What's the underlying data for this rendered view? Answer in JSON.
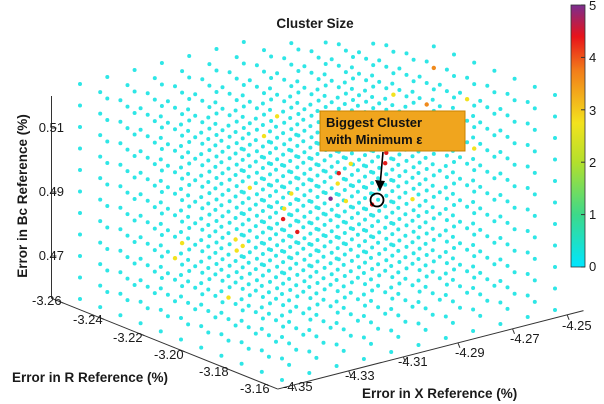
{
  "chart_data": {
    "type": "scatter3d",
    "title": "Cluster Size",
    "xlabel": "Error in X Reference (%)",
    "ylabel": "Error in R Reference (%)",
    "zlabel": "Error in Bc Reference (%)",
    "x_ticks": [
      "-4.35",
      "-4.33",
      "-4.31",
      "-4.29",
      "-4.27",
      "-4.25"
    ],
    "y_ticks": [
      "-3.26",
      "-3.24",
      "-3.22",
      "-3.20",
      "-3.18",
      "-3.16"
    ],
    "z_ticks": [
      "0.51",
      "0.49",
      "0.47"
    ],
    "xlim": [
      -4.35,
      -4.25
    ],
    "ylim": [
      -3.26,
      -3.16
    ],
    "zlim": [
      0.46,
      0.52
    ],
    "grid": "11 x 11 x 11 lattice of samples",
    "colorbar": {
      "min": 0,
      "max": 5,
      "ticks": [
        "5",
        "4",
        "3",
        "2",
        "1",
        "0"
      ],
      "colormap": "parula"
    },
    "default_value": 0,
    "nonzero_points": [
      {
        "ix": 4,
        "iy": 3,
        "iz": 6,
        "value": 5
      },
      {
        "ix": 5,
        "iy": 6,
        "iz": 3,
        "value": 4
      },
      {
        "ix": 7,
        "iy": 5,
        "iz": 4,
        "value": 4
      },
      {
        "ix": 8,
        "iy": 6,
        "iz": 6,
        "value": 4
      },
      {
        "ix": 9,
        "iy": 7,
        "iz": 5,
        "value": 4
      },
      {
        "ix": 3,
        "iy": 4,
        "iz": 5,
        "value": 4
      },
      {
        "ix": 6,
        "iy": 3,
        "iz": 7,
        "value": 4
      },
      {
        "ix": 8,
        "iy": 8,
        "iz": 4,
        "value": 4
      },
      {
        "ix": 9,
        "iy": 5,
        "iz": 8,
        "value": 3
      },
      {
        "ix": 7,
        "iy": 7,
        "iz": 7,
        "value": 3
      },
      {
        "ix": 10,
        "iy": 6,
        "iz": 9,
        "value": 3
      },
      {
        "ix": 2,
        "iy": 5,
        "iz": 4,
        "value": 2
      },
      {
        "ix": 3,
        "iy": 6,
        "iz": 3,
        "value": 2
      },
      {
        "ix": 4,
        "iy": 7,
        "iz": 5,
        "value": 2
      },
      {
        "ix": 5,
        "iy": 4,
        "iz": 6,
        "value": 2
      },
      {
        "ix": 6,
        "iy": 8,
        "iz": 3,
        "value": 2
      },
      {
        "ix": 7,
        "iy": 3,
        "iz": 5,
        "value": 2
      },
      {
        "ix": 8,
        "iy": 4,
        "iz": 7,
        "value": 2
      },
      {
        "ix": 9,
        "iy": 9,
        "iz": 2,
        "value": 2
      },
      {
        "ix": 10,
        "iy": 4,
        "iz": 6,
        "value": 2
      },
      {
        "ix": 10,
        "iy": 8,
        "iz": 7,
        "value": 2
      },
      {
        "ix": 6,
        "iy": 9,
        "iz": 6,
        "value": 2
      },
      {
        "ix": 4,
        "iy": 2,
        "iz": 8,
        "value": 2
      },
      {
        "ix": 2,
        "iy": 8,
        "iz": 2,
        "value": 2
      },
      {
        "ix": 5,
        "iy": 9,
        "iz": 1,
        "value": 2
      },
      {
        "ix": 8,
        "iy": 2,
        "iz": 9,
        "value": 2
      },
      {
        "ix": 3,
        "iy": 9,
        "iz": 2,
        "value": 2
      },
      {
        "ix": 9,
        "iy": 3,
        "iz": 9,
        "value": 2
      },
      {
        "ix": 1,
        "iy": 4,
        "iz": 2,
        "value": 2
      },
      {
        "ix": 7,
        "iy": 9,
        "iz": 3,
        "value": 2
      },
      {
        "ix": 10,
        "iy": 9,
        "iz": 5,
        "value": 2
      },
      {
        "ix": 5,
        "iy": 7,
        "iz": 8,
        "value": 2
      }
    ],
    "annotation": {
      "text_line1": "Biggest Cluster",
      "text_line2": "with Minimum ε",
      "target": {
        "ix": 7,
        "iy": 6,
        "iz": 5
      }
    }
  },
  "colors": {
    "annotation_box": "#f0a51e",
    "annotation_border": "#c98200",
    "dot_default": "#2ee6e6",
    "axis": "#333333"
  }
}
